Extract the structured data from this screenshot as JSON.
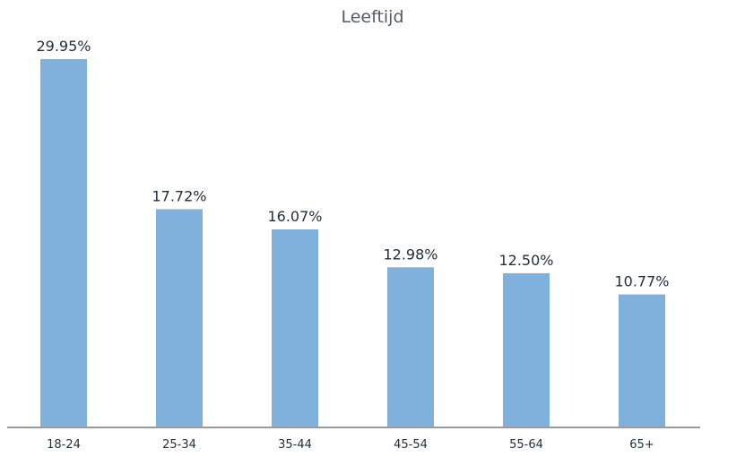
{
  "chart_data": {
    "type": "bar",
    "title": "Leeftijd",
    "categories": [
      "18-24",
      "25-34",
      "35-44",
      "45-54",
      "55-64",
      "65+"
    ],
    "values": [
      29.95,
      17.72,
      16.07,
      12.98,
      12.5,
      10.77
    ],
    "value_labels": [
      "29.95%",
      "17.72%",
      "16.07%",
      "12.98%",
      "12.50%",
      "10.77%"
    ],
    "xlabel": "",
    "ylabel": "",
    "ylim": [
      0,
      29.95
    ],
    "grid": false,
    "legend": "none",
    "colors": {
      "bar": "#80b1dd",
      "axis": "#9a9a9a",
      "text": "#1f2d3d",
      "title": "#555c66"
    }
  }
}
